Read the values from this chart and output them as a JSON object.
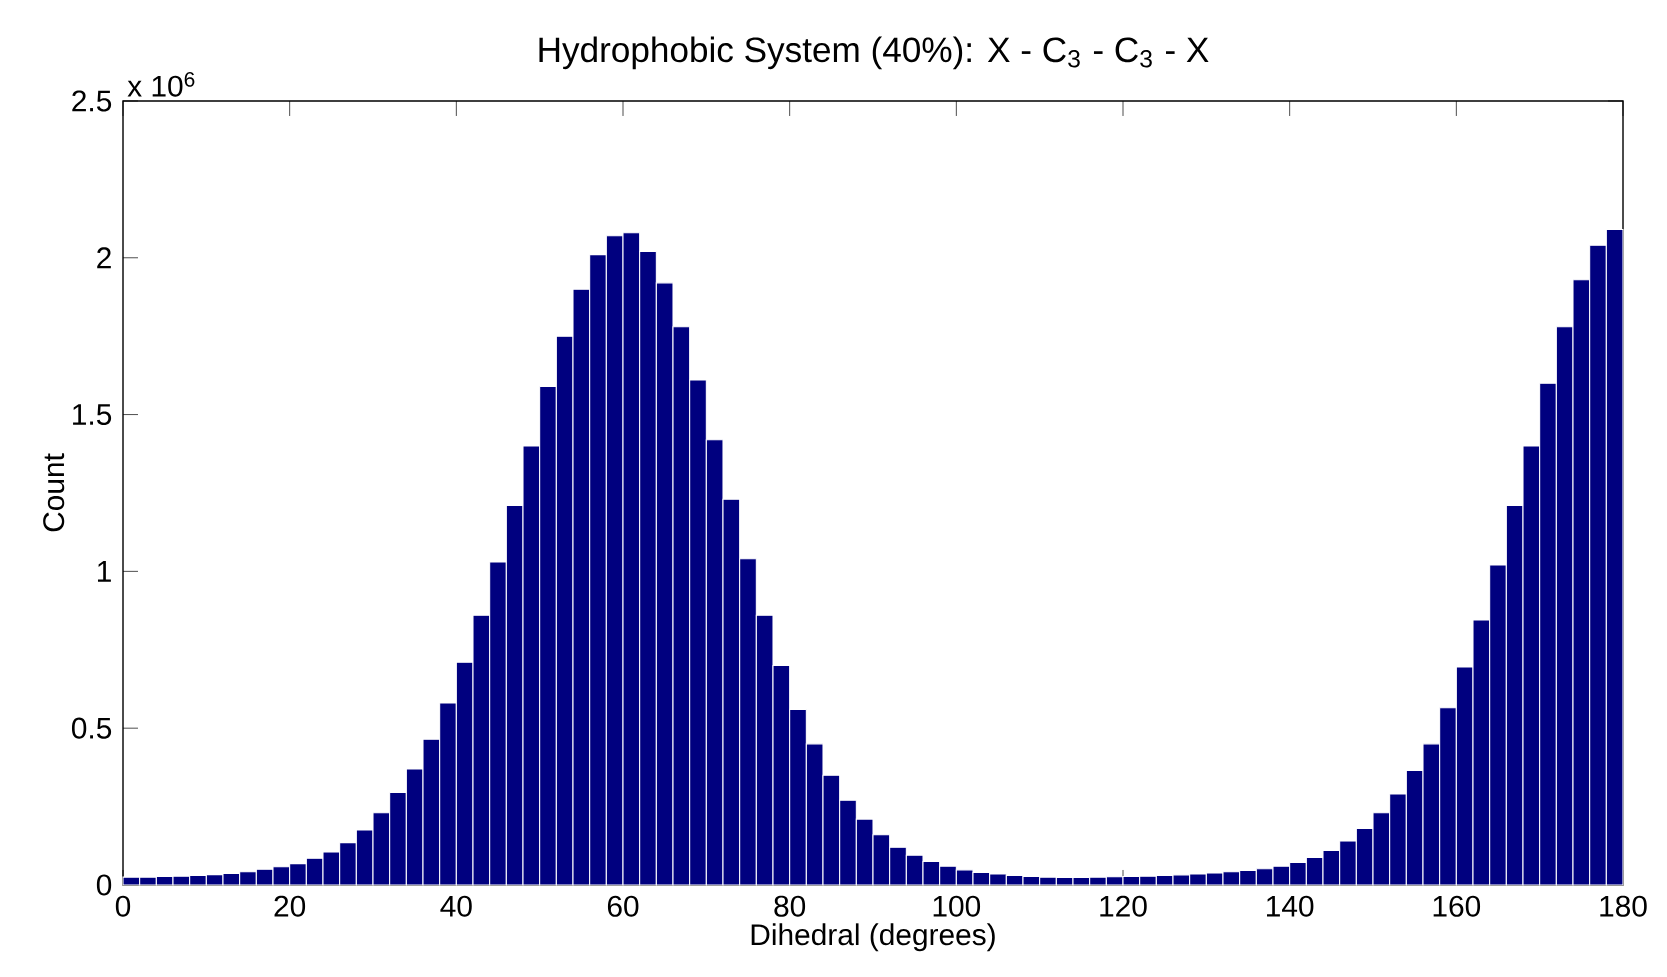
{
  "chart_data": {
    "type": "histogram",
    "title": "Hydrophobic System (40%): X - C$_{3}$ - C$_{3}$ - X",
    "xlabel": "Dihedral (degrees)",
    "ylabel": "Count",
    "annotations": [
      "x 10$^{6}$"
    ],
    "color": "#00007f",
    "bins": [
      0,
      2,
      4,
      6,
      8,
      10,
      12,
      14,
      16,
      18,
      20,
      22,
      24,
      26,
      28,
      30,
      32,
      34,
      36,
      38,
      40,
      42,
      44,
      46,
      48,
      50,
      52,
      54,
      56,
      58,
      60,
      62,
      64,
      66,
      68,
      70,
      72,
      74,
      76,
      78,
      80,
      82,
      84,
      86,
      88,
      90,
      92,
      94,
      96,
      98,
      100,
      102,
      104,
      106,
      108,
      110,
      112,
      114,
      116,
      118,
      120,
      122,
      124,
      126,
      128,
      130,
      132,
      134,
      136,
      138,
      140,
      142,
      144,
      146,
      148,
      150,
      152,
      154,
      156,
      158,
      160,
      162,
      164,
      166,
      168,
      170,
      172,
      174,
      176,
      178,
      180
    ],
    "values": [
      0.025,
      0.025,
      0.027,
      0.028,
      0.03,
      0.033,
      0.037,
      0.042,
      0.05,
      0.058,
      0.068,
      0.085,
      0.105,
      0.135,
      0.175,
      0.23,
      0.295,
      0.37,
      0.465,
      0.58,
      0.71,
      0.86,
      1.03,
      1.21,
      1.4,
      1.59,
      1.75,
      1.9,
      2.01,
      2.07,
      2.08,
      2.02,
      1.92,
      1.78,
      1.61,
      1.42,
      1.23,
      1.04,
      0.86,
      0.7,
      0.56,
      0.45,
      0.35,
      0.27,
      0.21,
      0.16,
      0.12,
      0.095,
      0.075,
      0.06,
      0.048,
      0.04,
      0.035,
      0.03,
      0.027,
      0.025,
      0.024,
      0.024,
      0.025,
      0.026,
      0.027,
      0.028,
      0.03,
      0.032,
      0.035,
      0.038,
      0.042,
      0.046,
      0.052,
      0.06,
      0.072,
      0.088,
      0.11,
      0.14,
      0.18,
      0.23,
      0.29,
      0.365,
      0.45,
      0.565,
      0.695,
      0.845,
      1.02,
      1.21,
      1.4,
      1.6,
      1.78,
      1.93,
      2.04,
      2.09
    ],
    "xlim": [
      0,
      180
    ],
    "xticks": [
      0,
      20,
      40,
      60,
      80,
      100,
      120,
      140,
      160,
      180
    ],
    "ylim": [
      0,
      2.5
    ],
    "yticks": [
      0,
      0.5,
      1,
      1.5,
      2,
      2.5
    ]
  }
}
